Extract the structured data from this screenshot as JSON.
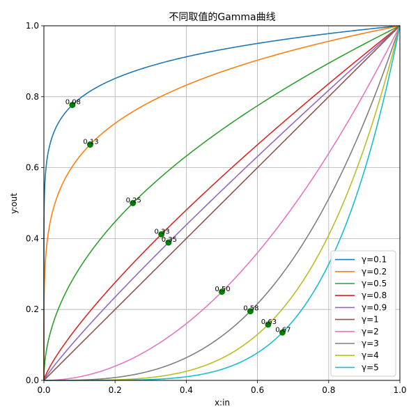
{
  "chart_data": {
    "type": "line",
    "title": "不同取值的Gamma曲线",
    "xlabel": "x:in",
    "ylabel": "y:out",
    "xlim": [
      0.0,
      1.0
    ],
    "ylim": [
      0.0,
      1.0
    ],
    "xticks": [
      "0.0",
      "0.2",
      "0.4",
      "0.6",
      "0.8",
      "1.0"
    ],
    "yticks": [
      "0.0",
      "0.2",
      "0.4",
      "0.6",
      "0.8",
      "1.0"
    ],
    "grid": true,
    "legend_position": "bottom-right",
    "series": [
      {
        "name": "γ=0.1",
        "gamma": 0.1,
        "color": "#1f77b4",
        "marker": {
          "x": 0.08,
          "label": "0.08"
        }
      },
      {
        "name": "γ=0.2",
        "gamma": 0.2,
        "color": "#ff7f0e",
        "marker": {
          "x": 0.13,
          "label": "0.13"
        }
      },
      {
        "name": "γ=0.5",
        "gamma": 0.5,
        "color": "#2ca02c",
        "marker": {
          "x": 0.25,
          "label": "0.25"
        }
      },
      {
        "name": "γ=0.8",
        "gamma": 0.8,
        "color": "#d62728",
        "marker": {
          "x": 0.33,
          "label": "0.33"
        }
      },
      {
        "name": "γ=0.9",
        "gamma": 0.9,
        "color": "#9467bd",
        "marker": {
          "x": 0.35,
          "label": "0.35"
        }
      },
      {
        "name": "γ=1",
        "gamma": 1,
        "color": "#8c564b",
        "marker": null
      },
      {
        "name": "γ=2",
        "gamma": 2,
        "color": "#e377c2",
        "marker": {
          "x": 0.5,
          "label": "0.50"
        }
      },
      {
        "name": "γ=3",
        "gamma": 3,
        "color": "#7f7f7f",
        "marker": {
          "x": 0.58,
          "label": "0.58"
        }
      },
      {
        "name": "γ=4",
        "gamma": 4,
        "color": "#bcbd22",
        "marker": {
          "x": 0.63,
          "label": "0.63"
        }
      },
      {
        "name": "γ=5",
        "gamma": 5,
        "color": "#17becf",
        "marker": {
          "x": 0.67,
          "label": "0.67"
        }
      }
    ],
    "marker_color": "#008000"
  }
}
